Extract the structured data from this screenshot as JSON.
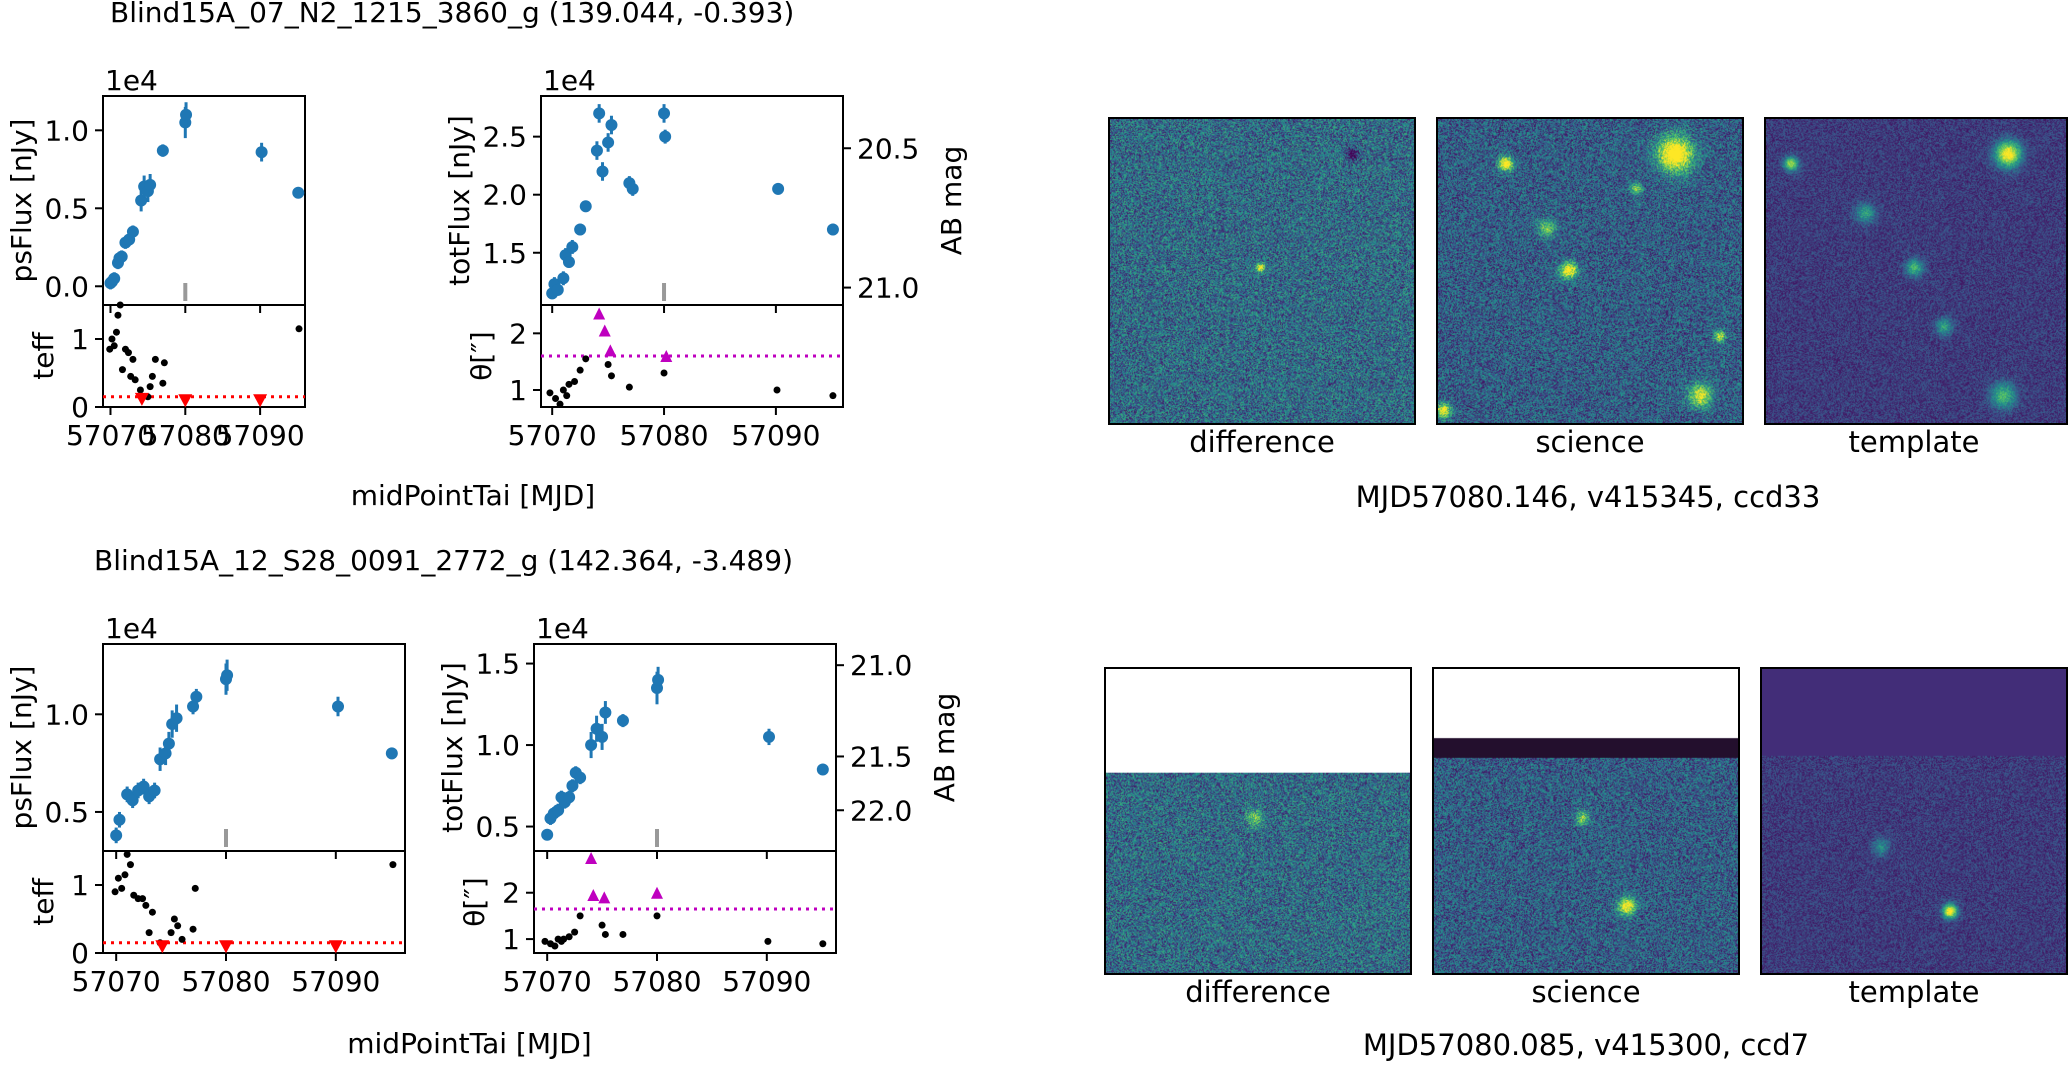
{
  "colors": {
    "flux": "#1f77b4",
    "teff": "#000000",
    "teff_limit": "#ff0000",
    "seeing_flag": "#bf00bf",
    "marker_tick": "#999999"
  },
  "panels": [
    {
      "title": "Blind15A_07_N2_1215_3860_g (139.044, -0.393)",
      "cutout_caption": "MJD57080.146, v415345, ccd33",
      "cutout_labels": [
        "difference",
        "science",
        "template"
      ],
      "cutout_style": "full",
      "chart_data": [
        {
          "type": "scatter",
          "name": "psFlux",
          "ylabel": "psFlux [nJy]",
          "offset_text": "1e4",
          "xlim": [
            56998.8,
            57096.0
          ],
          "ylim": [
            -1.2,
            12.2
          ],
          "yticks": [
            "0.0",
            "0.5",
            "1.0"
          ],
          "ytick_values": [
            0.0,
            5.0,
            10.0
          ],
          "x": [
            57070.0,
            57070.2,
            57070.5,
            57071.0,
            57071.2,
            57071.5,
            57072.0,
            57072.5,
            57073.0,
            57074.1,
            57074.5,
            57075.0,
            57075.3,
            57077.0,
            57080.0,
            57080.1,
            57090.2,
            57095.1
          ],
          "y": [
            0.2,
            0.3,
            0.5,
            1.5,
            1.8,
            1.9,
            2.8,
            3.0,
            3.5,
            5.5,
            6.4,
            6.1,
            6.5,
            8.7,
            10.5,
            11.0,
            8.6,
            6.0
          ],
          "yerr": [
            0.4,
            0.4,
            0.4,
            0.4,
            0.4,
            0.4,
            0.4,
            0.4,
            0.4,
            0.7,
            0.7,
            0.7,
            0.7,
            0.4,
            1.0,
            0.8,
            0.6,
            0.3
          ],
          "marker_mjd": 57080.0,
          "show_xticklabels": false
        },
        {
          "type": "scatter",
          "name": "teff",
          "ylabel": "teff",
          "xlim": [
            56998.8,
            57096.0
          ],
          "ylim": [
            0.0,
            1.5
          ],
          "yticks": [
            "0",
            "1"
          ],
          "ytick_values": [
            0.0,
            1.0
          ],
          "x": [
            57069.9,
            57070.2,
            57070.5,
            57070.8,
            57071.0,
            57071.3,
            57071.6,
            57072.0,
            57072.4,
            57072.7,
            57073.0,
            57073.3,
            57074.0,
            57075.0,
            57075.3,
            57075.6,
            57076.0,
            57077.0,
            57077.2,
            57095.2
          ],
          "y": [
            0.85,
            1.0,
            0.9,
            1.1,
            1.35,
            1.5,
            0.55,
            0.85,
            0.8,
            0.45,
            0.7,
            0.4,
            0.25,
            0.15,
            0.3,
            0.45,
            0.7,
            0.35,
            0.65,
            1.15
          ],
          "limits_x": [
            57074.2,
            57080.0,
            57090.0
          ],
          "limits_y": [
            0.12,
            0.1,
            0.1
          ],
          "threshold": 0.15,
          "xticks": [
            "57070",
            "57080",
            "57090"
          ],
          "xtick_values": [
            57070,
            57080,
            57090
          ],
          "show_xticklabels": true
        },
        {
          "type": "scatter",
          "name": "totFlux",
          "ylabel": "totFlux [nJy]",
          "ylabel_right": "AB mag",
          "offset_text": "1e4",
          "xlim": [
            56998.8,
            57096.0
          ],
          "ylim": [
            10.5,
            28.5
          ],
          "yticks": [
            "1.5",
            "2.0",
            "2.5"
          ],
          "ytick_values": [
            15.0,
            20.0,
            25.0
          ],
          "yticks_right": [
            "20.5",
            "21.0"
          ],
          "ytick_right_values": [
            24.0,
            12.0
          ],
          "x": [
            57070.0,
            57070.2,
            57070.5,
            57071.0,
            57071.2,
            57071.5,
            57071.8,
            57072.5,
            57073.0,
            57074.0,
            57074.2,
            57074.5,
            57075.0,
            57075.3,
            57076.9,
            57077.2,
            57080.0,
            57080.1,
            57090.2,
            57095.1
          ],
          "y": [
            11.5,
            12.3,
            11.8,
            12.8,
            14.8,
            14.2,
            15.5,
            17.0,
            19.0,
            23.8,
            27.0,
            22.0,
            24.5,
            26.0,
            21.0,
            20.5,
            27.0,
            25.0,
            20.5,
            17.0
          ],
          "yerr": [
            0.5,
            0.6,
            0.5,
            0.6,
            0.6,
            0.5,
            0.6,
            0.5,
            0.5,
            0.8,
            0.8,
            0.8,
            0.8,
            0.8,
            0.6,
            0.6,
            0.8,
            0.6,
            0.5,
            0.5
          ],
          "marker_mjd": 57080.0,
          "show_xticklabels": false
        },
        {
          "type": "scatter",
          "name": "seeing",
          "ylabel": "θ[″]",
          "xlim": [
            56998.8,
            57096.0
          ],
          "ylim": [
            0.7,
            2.5
          ],
          "yticks": [
            "1",
            "2"
          ],
          "ytick_values": [
            1.0,
            2.0
          ],
          "x": [
            57069.8,
            57070.3,
            57070.7,
            57071.0,
            57071.3,
            57071.5,
            57072.0,
            57072.5,
            57073.0,
            57075.0,
            57075.3,
            57076.9,
            57080.0,
            57090.1,
            57095.1
          ],
          "y": [
            0.95,
            0.85,
            0.75,
            1.0,
            0.9,
            1.1,
            1.15,
            1.35,
            1.55,
            1.45,
            1.25,
            1.05,
            1.3,
            1.0,
            0.9
          ],
          "flag_x": [
            57074.2,
            57074.7,
            57075.2,
            57080.2
          ],
          "flag_y": [
            2.35,
            2.05,
            1.7,
            1.6
          ],
          "threshold": 1.6,
          "xticks": [
            "57070",
            "57080",
            "57090"
          ],
          "xtick_values": [
            57070,
            57080,
            57090
          ],
          "show_xticklabels": true
        }
      ],
      "xlabel": "midPointTai [MJD]"
    },
    {
      "title": "Blind15A_12_S28_0091_2772_g (142.364, -3.489)",
      "cutout_caption": "MJD57080.085, v415300, ccd7",
      "cutout_labels": [
        "difference",
        "science",
        "template"
      ],
      "cutout_style": "edge",
      "chart_data": [
        {
          "type": "scatter",
          "name": "psFlux",
          "ylabel": "psFlux [nJy]",
          "offset_text": "1e4",
          "xlim": [
            56998.8,
            57096.0
          ],
          "ylim": [
            3.0,
            13.6
          ],
          "yticks": [
            "0.5",
            "1.0"
          ],
          "ytick_values": [
            5.0,
            10.0
          ],
          "x": [
            57070.0,
            57070.3,
            57071.0,
            57071.5,
            57072.0,
            57072.5,
            57073.0,
            57073.5,
            57074.0,
            57074.5,
            57074.8,
            57075.1,
            57075.5,
            57077.0,
            57077.3,
            57080.0,
            57080.1,
            57090.2,
            57095.1
          ],
          "y": [
            3.8,
            4.6,
            5.9,
            5.6,
            6.1,
            6.3,
            5.8,
            6.1,
            7.7,
            8.0,
            8.5,
            9.5,
            9.8,
            10.4,
            10.9,
            11.8,
            12.0,
            10.4,
            8.0
          ],
          "yerr": [
            0.4,
            0.4,
            0.4,
            0.4,
            0.4,
            0.4,
            0.4,
            0.4,
            0.6,
            0.6,
            0.6,
            0.7,
            0.7,
            0.4,
            0.4,
            0.8,
            0.8,
            0.5,
            0.3
          ],
          "marker_mjd": 57080.0,
          "show_xticklabels": false
        },
        {
          "type": "scatter",
          "name": "teff",
          "ylabel": "teff",
          "xlim": [
            56998.8,
            57096.0
          ],
          "ylim": [
            0.0,
            1.5
          ],
          "yticks": [
            "0",
            "1"
          ],
          "ytick_values": [
            0.0,
            1.0
          ],
          "x": [
            57069.9,
            57070.2,
            57070.5,
            57070.8,
            57071.0,
            57071.3,
            57071.6,
            57072.0,
            57072.4,
            57072.7,
            57073.0,
            57073.3,
            57074.0,
            57075.0,
            57075.3,
            57075.6,
            57076.0,
            57077.0,
            57077.2,
            57095.2
          ],
          "y": [
            0.9,
            1.1,
            0.95,
            1.15,
            1.45,
            1.3,
            0.85,
            0.8,
            0.8,
            0.7,
            0.3,
            0.6,
            0.15,
            0.3,
            0.5,
            0.4,
            0.2,
            0.35,
            0.95,
            1.3
          ],
          "limits_x": [
            57074.2,
            57080.0,
            57090.0
          ],
          "limits_y": [
            0.1,
            0.1,
            0.1
          ],
          "threshold": 0.15,
          "xticks": [
            "57070",
            "57080",
            "57090"
          ],
          "xtick_values": [
            57070,
            57080,
            57090
          ],
          "show_xticklabels": true
        },
        {
          "type": "scatter",
          "name": "totFlux",
          "ylabel": "totFlux [nJy]",
          "ylabel_right": "AB mag",
          "offset_text": "1e4",
          "xlim": [
            56998.8,
            57096.0
          ],
          "ylim": [
            3.5,
            16.2
          ],
          "yticks": [
            "0.5",
            "1.0",
            "1.5"
          ],
          "ytick_values": [
            5.0,
            10.0,
            15.0
          ],
          "yticks_right": [
            "21.0",
            "21.5",
            "22.0"
          ],
          "ytick_right_values": [
            14.9,
            9.3,
            6.0
          ],
          "x": [
            57070.0,
            57070.3,
            57070.6,
            57071.0,
            57071.3,
            57071.6,
            57072.0,
            57072.3,
            57072.6,
            57073.0,
            57074.0,
            57074.5,
            57075.0,
            57075.3,
            57076.9,
            57080.0,
            57080.1,
            57090.2,
            57095.1
          ],
          "y": [
            4.5,
            5.5,
            5.8,
            6.0,
            6.8,
            6.5,
            6.8,
            7.5,
            8.3,
            8.0,
            10.0,
            11.0,
            10.5,
            12.0,
            11.5,
            13.5,
            14.0,
            10.5,
            8.5
          ],
          "yerr": [
            0.3,
            0.4,
            0.4,
            0.4,
            0.4,
            0.4,
            0.4,
            0.4,
            0.4,
            0.4,
            0.8,
            0.8,
            0.8,
            0.7,
            0.4,
            1.0,
            0.8,
            0.5,
            0.3
          ],
          "marker_mjd": 57080.0,
          "show_xticklabels": false
        },
        {
          "type": "scatter",
          "name": "seeing",
          "ylabel": "θ[″]",
          "xlim": [
            56998.8,
            57096.0
          ],
          "ylim": [
            0.7,
            2.9
          ],
          "yticks": [
            "1",
            "2"
          ],
          "ytick_values": [
            1.0,
            2.0
          ],
          "x": [
            57069.8,
            57070.3,
            57070.7,
            57071.0,
            57071.3,
            57071.5,
            57072.0,
            57072.5,
            57073.0,
            57075.0,
            57075.3,
            57076.9,
            57080.0,
            57090.1,
            57095.1
          ],
          "y": [
            0.95,
            0.9,
            0.85,
            1.0,
            0.95,
            1.0,
            1.05,
            1.15,
            1.5,
            1.3,
            1.1,
            1.1,
            1.5,
            0.95,
            0.9
          ],
          "flag_x": [
            57074.0,
            57074.2,
            57075.2,
            57080.0
          ],
          "flag_y": [
            2.75,
            1.95,
            1.9,
            2.0
          ],
          "threshold": 1.65,
          "xticks": [
            "57070",
            "57080",
            "57090"
          ],
          "xtick_values": [
            57070,
            57080,
            57090
          ],
          "show_xticklabels": true
        }
      ],
      "xlabel": "midPointTai [MJD]"
    }
  ]
}
